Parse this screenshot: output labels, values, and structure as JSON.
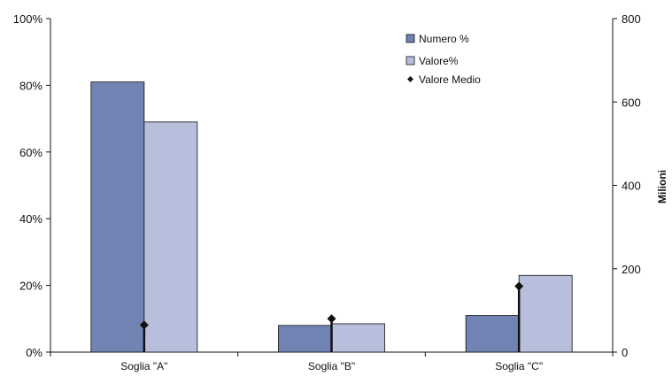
{
  "colors": {
    "numero": "#7083b3",
    "valore": "#b8bfdc",
    "marker": "#111111",
    "axis": "#111111"
  },
  "chart_data": {
    "type": "bar",
    "categories": [
      "Soglia \"A\"",
      "Soglia \"B\"",
      "Soglia \"C\""
    ],
    "series": [
      {
        "name": "Numero %",
        "axis": "left",
        "kind": "bar",
        "values": [
          81,
          8,
          11
        ]
      },
      {
        "name": "Valore%",
        "axis": "left",
        "kind": "bar",
        "values": [
          69,
          8.5,
          23
        ]
      },
      {
        "name": "Valore Medio",
        "axis": "right",
        "kind": "marker",
        "values": [
          65,
          80,
          158
        ]
      }
    ],
    "y_left": {
      "range": [
        0,
        100
      ],
      "ticks": [
        "0%",
        "20%",
        "40%",
        "60%",
        "80%",
        "100%"
      ],
      "tick_values": [
        0,
        20,
        40,
        60,
        80,
        100
      ]
    },
    "y_right": {
      "range": [
        0,
        800
      ],
      "label": "Milioni",
      "ticks": [
        "0",
        "200",
        "400",
        "600",
        "800"
      ],
      "tick_values": [
        0,
        200,
        400,
        600,
        800
      ]
    },
    "legend": {
      "placement": "top-right",
      "entries": [
        "Numero %",
        "Valore%",
        "Valore Medio"
      ]
    },
    "grid": false
  }
}
